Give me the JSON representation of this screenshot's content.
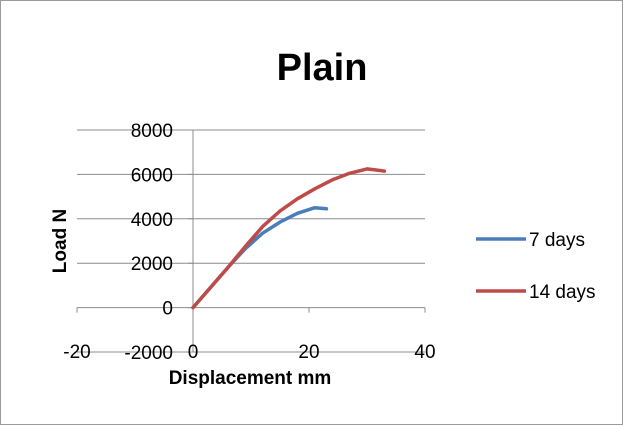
{
  "chart_data": {
    "type": "line",
    "title": "Plain",
    "xlabel": "Displacement mm",
    "ylabel": "Load N",
    "xlim": [
      -20,
      40
    ],
    "ylim": [
      -2000,
      8000
    ],
    "x_ticks": [
      "-20",
      "0",
      "20",
      "40"
    ],
    "y_ticks": [
      "-2000",
      "0",
      "2000",
      "4000",
      "6000",
      "8000"
    ],
    "grid": "horizontal",
    "legend_position": "right",
    "series": [
      {
        "name": "7 days",
        "color": "#4a7ebb",
        "x": [
          0,
          3,
          6,
          9,
          12,
          15,
          18,
          21,
          23
        ],
        "y": [
          0,
          900,
          1800,
          2650,
          3350,
          3850,
          4250,
          4500,
          4450
        ]
      },
      {
        "name": "14 days",
        "color": "#be4b48",
        "x": [
          0,
          3,
          6,
          9,
          12,
          15,
          18,
          21,
          24,
          27,
          30,
          33
        ],
        "y": [
          0,
          900,
          1800,
          2750,
          3650,
          4350,
          4900,
          5350,
          5750,
          6050,
          6250,
          6150
        ]
      }
    ]
  }
}
